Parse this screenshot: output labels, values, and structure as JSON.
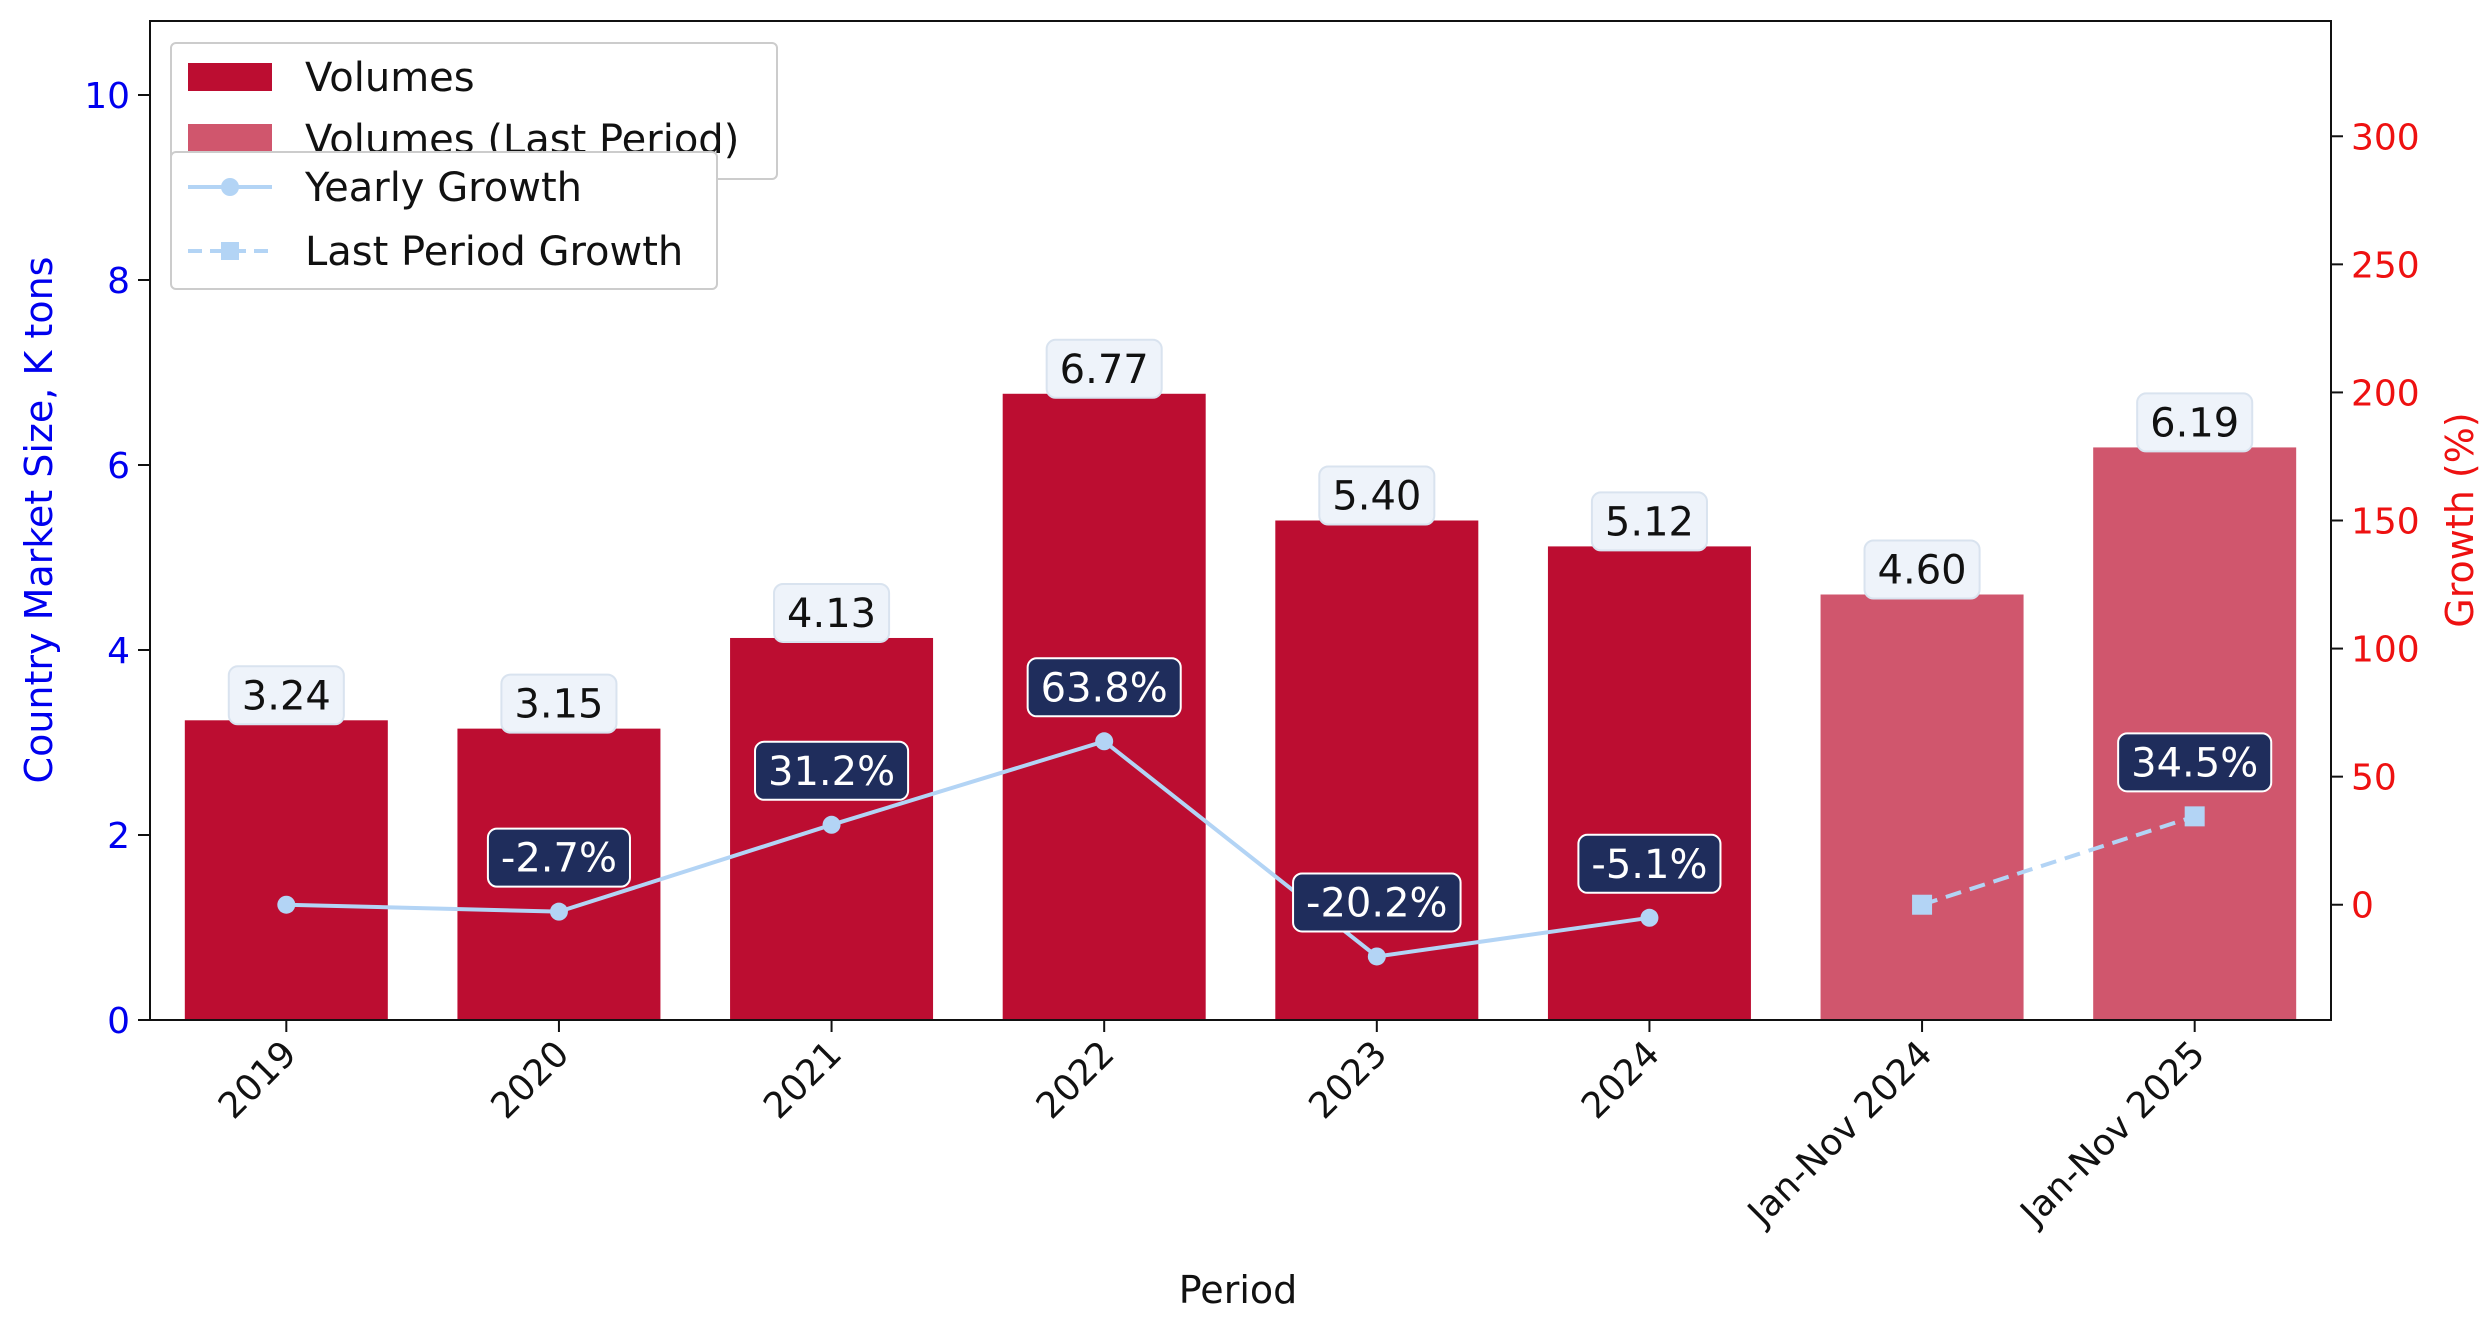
{
  "chart_data": {
    "type": "bar",
    "categories": [
      "2019",
      "2020",
      "2021",
      "2022",
      "2023",
      "2024",
      "Jan-Nov 2024",
      "Jan-Nov 2025"
    ],
    "series": [
      {
        "name": "Volumes",
        "type": "bar",
        "axis": "left",
        "color": "#bc0d31",
        "values": [
          3.24,
          3.15,
          4.13,
          6.77,
          5.4,
          5.12,
          null,
          null
        ],
        "labels": [
          "3.24",
          "3.15",
          "4.13",
          "6.77",
          "5.40",
          "5.12",
          "",
          ""
        ]
      },
      {
        "name": "Volumes (Last Period)",
        "type": "bar",
        "axis": "left",
        "color": "#d0566d",
        "values": [
          null,
          null,
          null,
          null,
          null,
          null,
          4.6,
          6.19
        ],
        "labels": [
          "",
          "",
          "",
          "",
          "",
          "",
          "4.60",
          "6.19"
        ]
      },
      {
        "name": "Yearly Growth",
        "type": "line",
        "axis": "right",
        "color": "#b3d4f5",
        "marker": "circle",
        "style": "solid",
        "values": [
          0,
          -2.7,
          31.2,
          63.8,
          -20.2,
          -5.1,
          null,
          null
        ],
        "labels": [
          "",
          "-2.7%",
          "31.2%",
          "63.8%",
          "-20.2%",
          "-5.1%",
          "",
          ""
        ]
      },
      {
        "name": "Last Period Growth",
        "type": "line",
        "axis": "right",
        "color": "#b3d4f5",
        "marker": "square",
        "style": "dashed",
        "values": [
          null,
          null,
          null,
          null,
          null,
          null,
          0,
          34.5
        ],
        "labels": [
          "",
          "",
          "",
          "",
          "",
          "",
          "",
          "34.5%"
        ]
      }
    ],
    "xlabel": "Period",
    "ylabel": "Country Market Size, K tons",
    "y2label": "Growth (%)",
    "ylim": [
      0,
      10.8
    ],
    "y2lim": [
      -45,
      345
    ],
    "yticks": [
      0,
      2,
      4,
      6,
      8,
      10
    ],
    "y2ticks": [
      0,
      50,
      100,
      150,
      200,
      250,
      300
    ],
    "grid": false,
    "legend_placement": "top-left",
    "colors": {
      "left_axis": "#0000ee",
      "right_axis": "#ee1111",
      "growth_label_bg": "#1f2d5c",
      "value_label_bg": "#eef3fa"
    }
  }
}
